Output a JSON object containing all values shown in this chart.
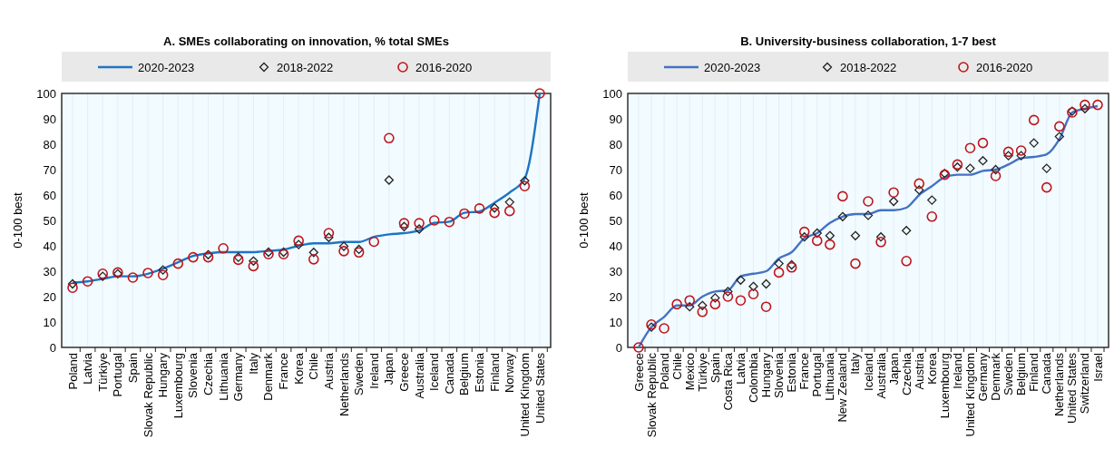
{
  "chart_data": [
    {
      "type": "line",
      "title": "A. SMEs collaborating on innovation, % total SMEs",
      "ylabel": "0-100 best",
      "categories": [
        "Poland",
        "Latvia",
        "Türkiye",
        "Portugal",
        "Spain",
        "Slovak Republic",
        "Hungary",
        "Luxembourg",
        "Slovenia",
        "Czechia",
        "Lithuania",
        "Germany",
        "Italy",
        "Denmark",
        "France",
        "Korea",
        "Chile",
        "Austria",
        "Netherlands",
        "Sweden",
        "Ireland",
        "Japan",
        "Greece",
        "Australia",
        "Iceland",
        "Canada",
        "Belgium",
        "Estonia",
        "Finland",
        "Norway",
        "United Kingdom",
        "United States"
      ],
      "series": [
        {
          "name": "2020-2023",
          "marker": "none",
          "color": "#1f74c4",
          "values": [
            25.5,
            26,
            27,
            28,
            28,
            29,
            31,
            33.5,
            36,
            37,
            37.5,
            37.5,
            37.5,
            38,
            38.5,
            40,
            41,
            41,
            41.5,
            41.5,
            43.5,
            44.5,
            45,
            46,
            49,
            49.5,
            53,
            53.5,
            57,
            61,
            66.5,
            100
          ]
        },
        {
          "name": "2018-2022",
          "type": "scatter",
          "marker": "diamond",
          "color": "#222222",
          "values": [
            25,
            null,
            28,
            29,
            null,
            null,
            30.5,
            null,
            null,
            36.5,
            null,
            35.5,
            34,
            37.5,
            37.5,
            40.5,
            37.4,
            43.3,
            39.8,
            38.6,
            null,
            65.9,
            47.6,
            46.6,
            null,
            null,
            null,
            null,
            54.9,
            57.2,
            65.6,
            null
          ]
        },
        {
          "name": "2016-2020",
          "type": "scatter",
          "marker": "circle",
          "color": "#c0141c",
          "values": [
            23.5,
            26,
            29,
            29.5,
            27.5,
            29.3,
            28.5,
            33,
            35.5,
            35.5,
            39,
            34.5,
            32,
            36.7,
            36.7,
            42,
            34.7,
            45,
            37.9,
            37.4,
            41.6,
            82.4,
            48.9,
            48.9,
            50,
            49.4,
            52.7,
            54.7,
            53,
            53.7,
            63.5,
            100
          ]
        }
      ],
      "ylim": [
        0,
        100
      ],
      "yticks": [
        0,
        10,
        20,
        30,
        40,
        50,
        60,
        70,
        80,
        90,
        100
      ],
      "grid": "x",
      "legend": "top"
    },
    {
      "type": "line",
      "title": "B. University-business  collaboration, 1-7 best",
      "ylabel": "0-100 best",
      "categories": [
        "Greece",
        "Slovak Republic",
        "Poland",
        "Chile",
        "Mexico",
        "Türkiye",
        "Spain",
        "Costa Rica",
        "Latvia",
        "Colombia",
        "Hungary",
        "Slovenia",
        "Estonia",
        "France",
        "Portugal",
        "Lithuania",
        "New Zealand",
        "Italy",
        "Iceland",
        "Australia",
        "Japan",
        "Czechia",
        "Austria",
        "Korea",
        "Luxembourg",
        "Ireland",
        "United Kingdom",
        "Germany",
        "Denmark",
        "Sweden",
        "Belgium",
        "Finland",
        "Canada",
        "Netherlands",
        "United States",
        "Switzerland",
        "Israel"
      ],
      "series": [
        {
          "name": "2020-2023",
          "marker": "none",
          "color": "#4472c4",
          "values": [
            0,
            8,
            12,
            16.5,
            16.5,
            20,
            22,
            22.5,
            28,
            29,
            30,
            35,
            37.5,
            43,
            45,
            49,
            51.5,
            52.5,
            52.5,
            54,
            54,
            55,
            60,
            63.5,
            67,
            68,
            68,
            69.5,
            70,
            72,
            74.5,
            75,
            76,
            82,
            92.5,
            94,
            95
          ]
        },
        {
          "name": "2018-2022",
          "type": "scatter",
          "marker": "diamond",
          "color": "#222222",
          "values": [
            null,
            8,
            null,
            null,
            16,
            16.5,
            19.5,
            22,
            26.5,
            24,
            25,
            33,
            32.5,
            43.5,
            45,
            44,
            51.5,
            44,
            52,
            43.5,
            57.5,
            46,
            62,
            58,
            68.5,
            71,
            70.5,
            73.5,
            70,
            75.5,
            75.5,
            80.5,
            70.5,
            83,
            93,
            94,
            null
          ]
        },
        {
          "name": "2016-2020",
          "type": "scatter",
          "marker": "circle",
          "color": "#c0141c",
          "values": [
            0,
            9,
            7.5,
            17,
            18.5,
            14,
            17,
            20,
            18.5,
            21,
            16,
            29.5,
            31.5,
            45.5,
            42,
            40.5,
            59.5,
            33,
            57.5,
            41.5,
            61,
            34,
            64.5,
            51.5,
            68,
            72,
            78.5,
            80.5,
            67.5,
            77,
            77.5,
            89.5,
            63,
            87,
            92.5,
            95.5,
            95.5
          ]
        }
      ],
      "ylim": [
        0,
        100
      ],
      "yticks": [
        0,
        10,
        20,
        30,
        40,
        50,
        60,
        70,
        80,
        90,
        100
      ],
      "grid": "x",
      "legend": "top"
    }
  ]
}
